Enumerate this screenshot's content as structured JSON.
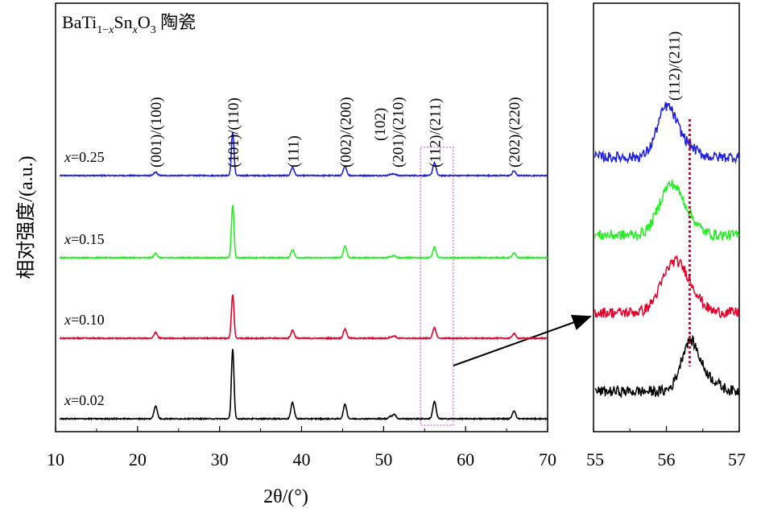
{
  "chart_data": [
    {
      "type": "line",
      "title_parts": {
        "base": "BaTi",
        "sub1": "1−",
        "sub1_var": "x",
        "sn": "Sn",
        "sub2_var": "x",
        "o": "O",
        "sub3": "3",
        "suffix": " 陶瓷"
      },
      "xlabel": "2θ/(°)",
      "ylabel": "相对强度/(a.u.)",
      "xlim": [
        10,
        70
      ],
      "x_ticks": [
        10,
        20,
        30,
        40,
        50,
        60,
        70
      ],
      "grid": false,
      "highlight_range": [
        54.5,
        58.5
      ],
      "peaks": [
        {
          "label": "(001)/(100)",
          "x": 22.2
        },
        {
          "label": "(101)/(110)",
          "x": 31.6
        },
        {
          "label": "(111)",
          "x": 38.9
        },
        {
          "label": "(002)/(200)",
          "x": 45.3
        },
        {
          "label": "(102)",
          "x": 50.8
        },
        {
          "label": "(201)/(210)",
          "x": 51.3
        },
        {
          "label": "(112)/(211)",
          "x": 56.2
        },
        {
          "label": "(202)/(220)",
          "x": 65.9
        }
      ],
      "series": [
        {
          "name_var": "x",
          "name_val": "=0.25",
          "color": "#1f1fe0",
          "peak_heights": [
            0.06,
            0.75,
            0.14,
            0.16,
            0.02,
            0.03,
            0.22,
            0.08
          ]
        },
        {
          "name_var": "x",
          "name_val": "=0.15",
          "color": "#22ee22",
          "peak_heights": [
            0.08,
            0.9,
            0.14,
            0.2,
            0.02,
            0.04,
            0.18,
            0.08
          ]
        },
        {
          "name_var": "x",
          "name_val": "=0.10",
          "color": "#e8002a",
          "peak_heights": [
            0.1,
            0.75,
            0.14,
            0.16,
            0.02,
            0.04,
            0.18,
            0.08
          ]
        },
        {
          "name_var": "x",
          "name_val": "=0.02",
          "color": "#000000",
          "peak_heights": [
            0.22,
            1.2,
            0.28,
            0.25,
            0.04,
            0.08,
            0.3,
            0.14
          ]
        }
      ]
    },
    {
      "type": "line",
      "inset_label": "(112)/(211)",
      "xlim": [
        55,
        57
      ],
      "x_ticks": [
        55,
        56,
        57
      ],
      "reference_line_x": 56.32,
      "reference_line_color": "#c0103a",
      "series": [
        {
          "color": "#1f1fe0",
          "peak_center": 56.0,
          "width": 0.18
        },
        {
          "color": "#22ee22",
          "peak_center": 56.05,
          "width": 0.22
        },
        {
          "color": "#e8002a",
          "peak_center": 56.1,
          "width": 0.24
        },
        {
          "color": "#000000",
          "peak_center": 56.32,
          "width": 0.17
        }
      ]
    }
  ]
}
